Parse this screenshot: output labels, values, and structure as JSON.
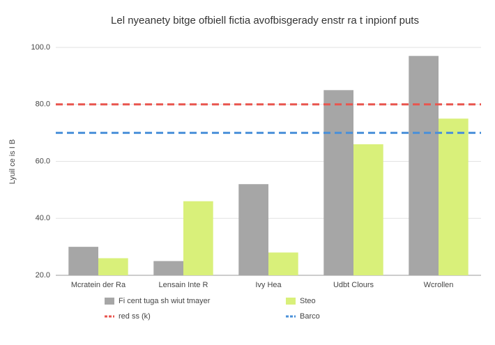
{
  "chart_data": {
    "type": "bar",
    "title": "Lel nyeanety bitge ofbiell fictia avofbisgerady enstr ra t inpionf puts",
    "y_label": "Lyuil ce is I B",
    "categories": [
      "Mcratein der Ra",
      "Lensain Inte R",
      "Ivy Hea",
      "Udbt Clours",
      "Wcrollen"
    ],
    "series": [
      {
        "name": "Fi cent tuga sh wiut tmayer",
        "color": "#a6a6a6",
        "values": [
          30,
          25,
          52,
          85,
          97
        ]
      },
      {
        "name": "Steo",
        "color": "#d9f07a",
        "values": [
          26,
          46,
          28,
          66,
          75
        ]
      }
    ],
    "reference_lines": [
      {
        "name": "red ss (k)",
        "color": "#e8554e",
        "value": 80
      },
      {
        "name": "Barco",
        "color": "#4a90d9",
        "value": 70
      }
    ],
    "ylim": [
      20,
      100
    ],
    "yticks": [
      {
        "value": 20,
        "label": "20.0"
      },
      {
        "value": 40,
        "label": "40.0"
      },
      {
        "value": 60,
        "label": "60.0"
      },
      {
        "value": 80,
        "label": "80.0"
      },
      {
        "value": 100,
        "label": "100.0"
      }
    ],
    "grid": true
  }
}
